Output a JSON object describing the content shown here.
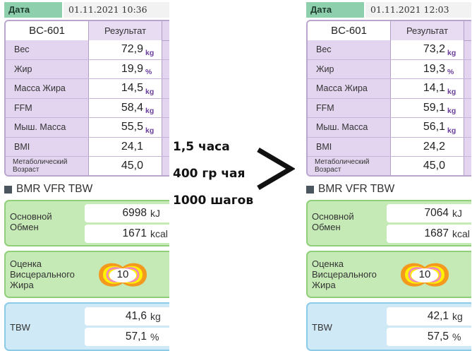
{
  "left": {
    "date_label": "Дата",
    "date_value": "01.11.2021 10:36",
    "device": "BC-601",
    "result_header": "Результат",
    "rows": [
      {
        "label": "Вес",
        "value": "72,9",
        "unit": "kg"
      },
      {
        "label": "Жир",
        "value": "19,9",
        "unit": "%"
      },
      {
        "label": "Масса Жира",
        "value": "14,5",
        "unit": "kg"
      },
      {
        "label": "FFM",
        "value": "58,4",
        "unit": "kg"
      },
      {
        "label": "Мыш. Масса",
        "value": "55,5",
        "unit": "kg"
      },
      {
        "label": "BMI",
        "value": "24,1",
        "unit": ""
      },
      {
        "label": "Метаболический Возраст",
        "value": "45,0",
        "unit": ""
      }
    ],
    "section_title": "BMR VFR TBW",
    "bmr": {
      "label": "Основной Обмен",
      "kj": "6998",
      "kj_unit": "kJ",
      "kcal": "1671",
      "kcal_unit": "kcal"
    },
    "vfr": {
      "label": "Оценка Висцерального Жира",
      "value": "10"
    },
    "tbw": {
      "label": "TBW",
      "kg": "41,6",
      "kg_unit": "kg",
      "pct": "57,1",
      "pct_unit": "%"
    }
  },
  "right": {
    "date_label": "Дата",
    "date_value": "01.11.2021 12:03",
    "device": "BC-601",
    "result_header": "Результат",
    "rows": [
      {
        "label": "Вес",
        "value": "73,2",
        "unit": "kg"
      },
      {
        "label": "Жир",
        "value": "19,3",
        "unit": "%"
      },
      {
        "label": "Масса Жира",
        "value": "14,1",
        "unit": "kg"
      },
      {
        "label": "FFM",
        "value": "59,1",
        "unit": "kg"
      },
      {
        "label": "Мыш. Масса",
        "value": "56,1",
        "unit": "kg"
      },
      {
        "label": "BMI",
        "value": "24,2",
        "unit": ""
      },
      {
        "label": "Метаболический Возраст",
        "value": "45,0",
        "unit": ""
      }
    ],
    "section_title": "BMR VFR TBW",
    "bmr": {
      "label": "Основной Обмен",
      "kj": "7064",
      "kj_unit": "kJ",
      "kcal": "1687",
      "kcal_unit": "kcal"
    },
    "vfr": {
      "label": "Оценка Висцерального Жира",
      "value": "10"
    },
    "tbw": {
      "label": "TBW",
      "kg": "42,1",
      "kg_unit": "kg",
      "pct": "57,5",
      "pct_unit": "%"
    }
  },
  "notes": [
    "1,5 часа",
    "400 гр чая",
    "1000 шагов"
  ],
  "comparison_symbol": "greater-than-arrow",
  "colors": {
    "date_label_bg": "#8ecfae",
    "results_bg": "#e3d5ef",
    "results_border": "#b9a6cf",
    "unit_purple": "#6a3d9a",
    "green_card_bg": "#c5eab6",
    "blue_card_bg": "#cfeaf6",
    "vfr_outer": "#f39a1e",
    "vfr_inner": "#fff200",
    "vfr_ring": "#f08ab6"
  }
}
